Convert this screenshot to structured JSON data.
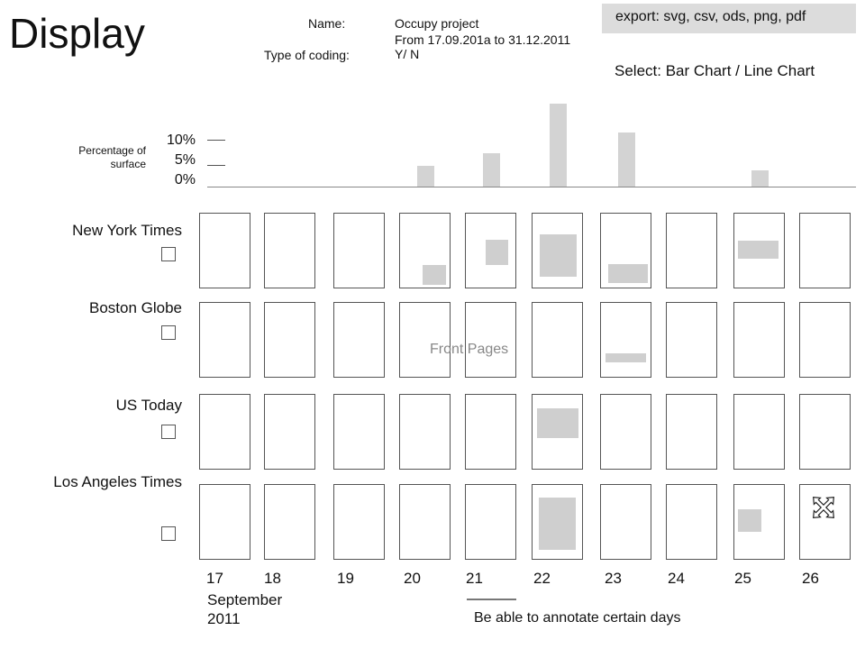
{
  "title": "Display",
  "meta": {
    "name_label": "Name:",
    "name_value": "Occupy project",
    "range_value": "From 17.09.201a to 31.12.2011",
    "coding_label": "Type of coding:",
    "coding_value": "Y/ N"
  },
  "export_text": "export: svg, csv, ods, png, pdf",
  "select_text": "Select: Bar Chart / Line Chart",
  "chart_data": {
    "type": "bar",
    "ylabel": "Percentage of surface",
    "yticks": [
      "10%",
      "5%",
      "0%"
    ],
    "categories": [
      "17",
      "18",
      "19",
      "20",
      "21",
      "22",
      "23",
      "24",
      "25",
      "26"
    ],
    "values": [
      0,
      0,
      0,
      5,
      8,
      20,
      13,
      0,
      4,
      0
    ],
    "ylim": [
      0,
      20
    ]
  },
  "papers": [
    {
      "name": "New York Times",
      "marks": [
        null,
        null,
        null,
        [
          0.46,
          0.7,
          0.46,
          0.26
        ],
        [
          0.4,
          0.35,
          0.46,
          0.35
        ],
        [
          0.15,
          0.28,
          0.74,
          0.57
        ],
        [
          0.15,
          0.68,
          0.79,
          0.26
        ],
        null,
        [
          0.07,
          0.36,
          0.83,
          0.25
        ],
        null
      ]
    },
    {
      "name": "Boston Globe",
      "marks": [
        null,
        null,
        null,
        null,
        null,
        null,
        [
          0.09,
          0.68,
          0.82,
          0.13
        ],
        null,
        null,
        null
      ]
    },
    {
      "name": "US Today",
      "marks": [
        null,
        null,
        null,
        null,
        null,
        [
          0.09,
          0.18,
          0.83,
          0.4
        ],
        null,
        null,
        null,
        null
      ]
    },
    {
      "name": "Los Angeles Times",
      "marks": [
        null,
        null,
        null,
        null,
        null,
        [
          0.12,
          0.17,
          0.76,
          0.71
        ],
        null,
        null,
        [
          0.07,
          0.33,
          0.47,
          0.31
        ],
        null
      ]
    }
  ],
  "front_pages_label": "Front Pages",
  "month_label": "September",
  "year_label": "2011",
  "annotation_text": "Be able to annotate certain days",
  "colors": {
    "bar": "#d3d3d3",
    "mark": "#cfcfcf"
  },
  "icons": {
    "move": "move-arrows-icon"
  }
}
